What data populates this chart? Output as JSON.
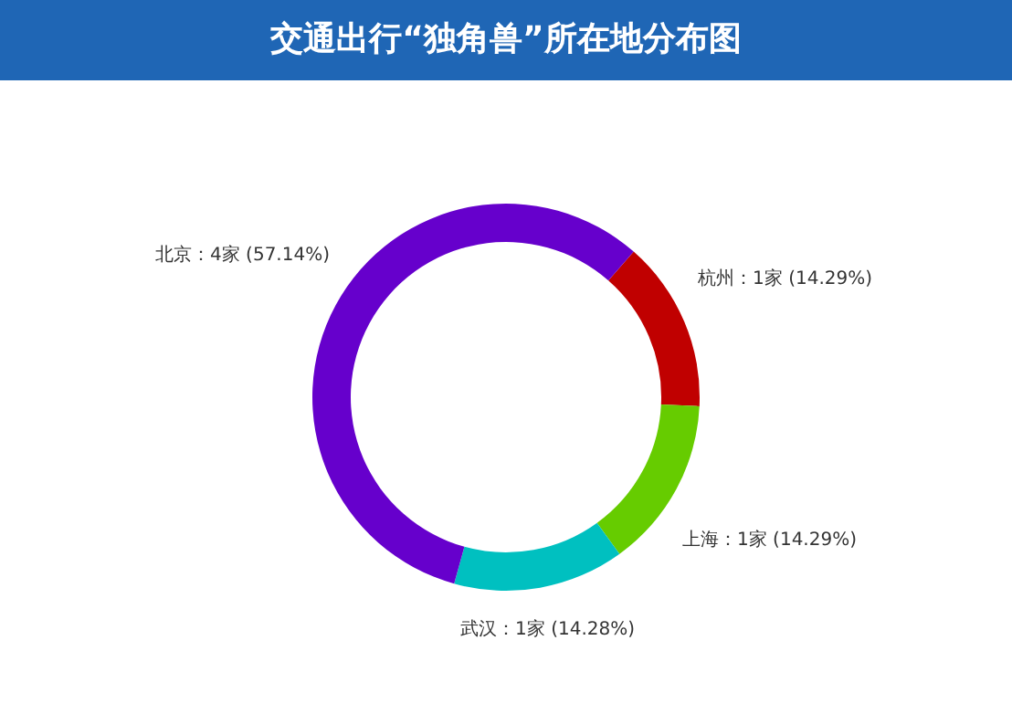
{
  "chart_data": {
    "type": "donut",
    "title": "交通出行“独角兽”所在地分布图",
    "categories": [
      "杭州",
      "上海",
      "武汉",
      "北京"
    ],
    "values": [
      1,
      1,
      1,
      4
    ],
    "colors": [
      "#c00000",
      "#66cc00",
      "#00c0c0",
      "#6600cc"
    ],
    "value_labels": [
      "1家 (14.29%)",
      "1家 (14.29%)",
      "1家 (14.28%)",
      "4家 (57.14%)"
    ],
    "legend": false
  }
}
